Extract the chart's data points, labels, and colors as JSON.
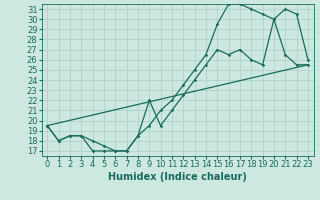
{
  "xlabel": "Humidex (Indice chaleur)",
  "bg_color": "#cce8e0",
  "grid_color": "#aacec6",
  "line_color": "#1a6b5a",
  "xlim": [
    -0.5,
    23.5
  ],
  "ylim": [
    16.5,
    31.5
  ],
  "xticks": [
    0,
    1,
    2,
    3,
    4,
    5,
    6,
    7,
    8,
    9,
    10,
    11,
    12,
    13,
    14,
    15,
    16,
    17,
    18,
    19,
    20,
    21,
    22,
    23
  ],
  "yticks": [
    17,
    18,
    19,
    20,
    21,
    22,
    23,
    24,
    25,
    26,
    27,
    28,
    29,
    30,
    31
  ],
  "line1_x": [
    0,
    1,
    2,
    3,
    4,
    5,
    6,
    7,
    8,
    9,
    10,
    11,
    12,
    13,
    14,
    15,
    16,
    17,
    18,
    19,
    20,
    21,
    22,
    23
  ],
  "line1_y": [
    19.5,
    18.0,
    18.5,
    18.5,
    17.0,
    17.0,
    17.0,
    17.0,
    18.5,
    22.0,
    19.5,
    21.0,
    22.5,
    24.0,
    25.5,
    27.0,
    26.5,
    27.0,
    26.0,
    25.5,
    30.0,
    26.5,
    25.5,
    25.5
  ],
  "line2_x": [
    0,
    1,
    2,
    3,
    4,
    5,
    6,
    7,
    8,
    9,
    10,
    11,
    12,
    13,
    14,
    15,
    16,
    17,
    18,
    19,
    20,
    21,
    22,
    23
  ],
  "line2_y": [
    19.5,
    18.0,
    18.5,
    18.5,
    18.0,
    17.5,
    17.0,
    17.0,
    18.5,
    19.5,
    21.0,
    22.0,
    23.5,
    25.0,
    26.5,
    29.5,
    31.5,
    31.5,
    31.0,
    30.5,
    30.0,
    31.0,
    30.5,
    26.0
  ],
  "line3_x": [
    0,
    23
  ],
  "line3_y": [
    19.5,
    25.5
  ],
  "fontsize_label": 7,
  "fontsize_tick": 6,
  "marker_size": 1.8,
  "line_width": 0.9
}
